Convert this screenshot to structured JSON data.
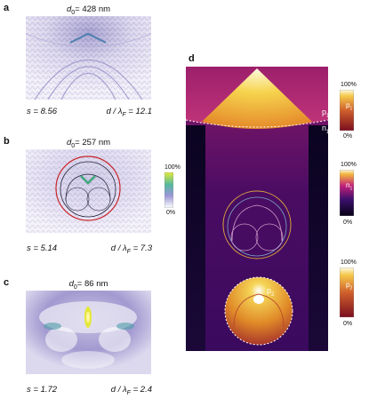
{
  "panels": {
    "a": {
      "letter": "a",
      "title_var": "d",
      "title_sub": "0",
      "title_rest": "= 428 nm",
      "s_label": "s = 8.56",
      "ratio_var": "d / λ",
      "ratio_sub": "F",
      "ratio_val": " = 12.1"
    },
    "b": {
      "letter": "b",
      "title_var": "d",
      "title_sub": "0",
      "title_rest": "= 257 nm",
      "s_label": "s = 5.14",
      "ratio_var": "d / λ",
      "ratio_sub": "F",
      "ratio_val": " = 7.3"
    },
    "c": {
      "letter": "c",
      "title_var": "d",
      "title_sub": "0",
      "title_rest": "= 86 nm",
      "s_label": "s = 1.72",
      "ratio_var": "d / λ",
      "ratio_sub": "F",
      "ratio_val": " = 2.4"
    },
    "d": {
      "letter": "d"
    }
  },
  "colorbar_b": {
    "max": "100%",
    "min": "0%"
  },
  "colorbar_p1": {
    "max": "100%",
    "min": "0%",
    "name": "p",
    "sub": "1"
  },
  "colorbar_n1": {
    "max": "100%",
    "min": "0%",
    "name": "n",
    "sub": "1"
  },
  "colorbar_p2": {
    "max": "100%",
    "min": "0%",
    "name": "p",
    "sub": "2"
  },
  "map_labels": {
    "p1": {
      "name": "p",
      "sub": "1"
    },
    "n1": {
      "name": "n",
      "sub": "1"
    },
    "p2": {
      "name": "p",
      "sub": "2"
    }
  },
  "colors": {
    "interference": "#8d85c0",
    "fire_dark": "#260046",
    "fire_mid": "#b2187a",
    "fire_bright": "#f3b93a",
    "circle_red": "#c8262b",
    "circle_gold": "#d4a13c"
  }
}
